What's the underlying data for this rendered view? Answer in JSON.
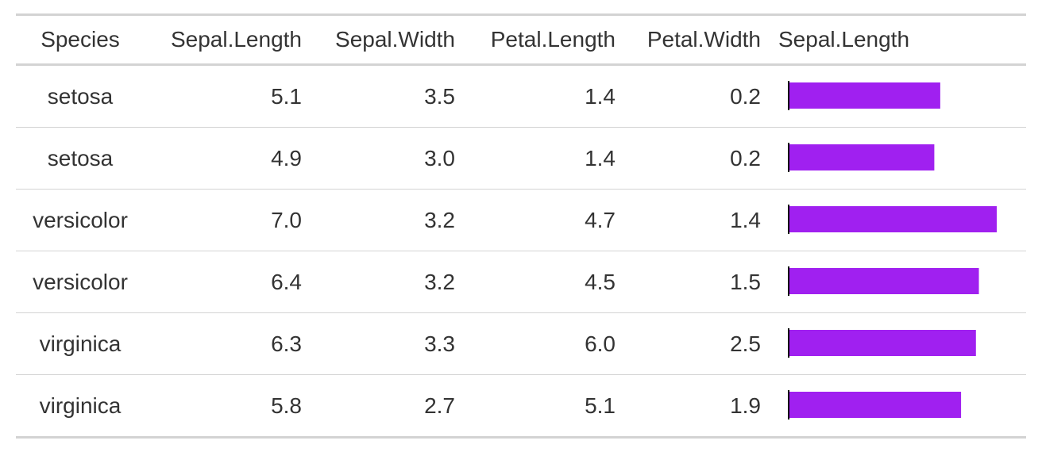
{
  "table": {
    "columns": [
      "Species",
      "Sepal.Length",
      "Sepal.Width",
      "Petal.Length",
      "Petal.Width",
      "Sepal.Length"
    ],
    "bar_color": "#a020f0",
    "rows": [
      [
        "setosa",
        "5.1",
        "3.5",
        "1.4",
        "0.2"
      ],
      [
        "setosa",
        "4.9",
        "3.0",
        "1.4",
        "0.2"
      ],
      [
        "versicolor",
        "7.0",
        "3.2",
        "4.7",
        "1.4"
      ],
      [
        "versicolor",
        "6.4",
        "3.2",
        "4.5",
        "1.5"
      ],
      [
        "virginica",
        "6.3",
        "3.3",
        "6.0",
        "2.5"
      ],
      [
        "virginica",
        "5.8",
        "2.7",
        "5.1",
        "1.9"
      ]
    ]
  }
}
